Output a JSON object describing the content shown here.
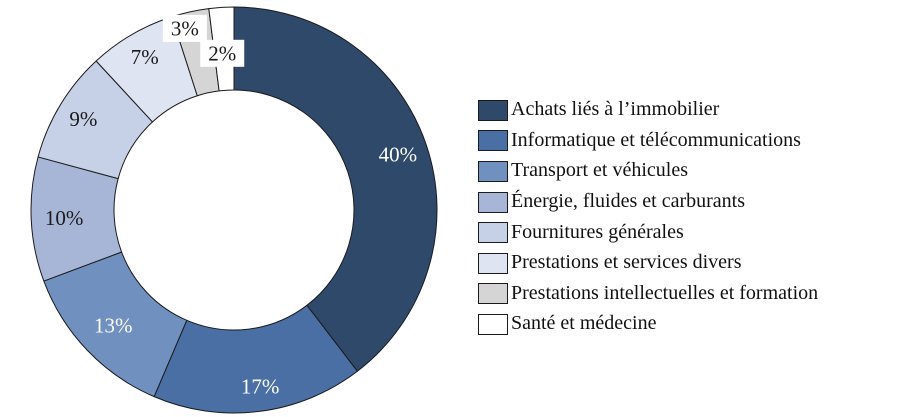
{
  "figure": {
    "background": "#FFFFFF"
  },
  "chart_data": {
    "type": "donut",
    "title": "",
    "unit": "%",
    "direction": "clockwise",
    "start_angle_deg": 0,
    "inner_radius_ratio": 0.59,
    "stroke_color": "#1B1B1B",
    "label_box_color": "#FFFFFF",
    "legend_position": "right",
    "slices": [
      {
        "label": "Achats liés à l’immobilier",
        "value": 40,
        "value_label": "40%",
        "color": "#2F496B",
        "text_color": "#FFFFFF"
      },
      {
        "label": "Informatique et télécommunications",
        "value": 17,
        "value_label": "17%",
        "color": "#4A6FA5",
        "text_color": "#FFFFFF"
      },
      {
        "label": "Transport et véhicules",
        "value": 13,
        "value_label": "13%",
        "color": "#7090C0",
        "text_color": "#FFFFFF"
      },
      {
        "label": "Énergie, fluides et carburants",
        "value": 10,
        "value_label": "10%",
        "color": "#A7B6D7",
        "text_color": "#1A1A1A"
      },
      {
        "label": "Fournitures générales",
        "value": 9,
        "value_label": "9%",
        "color": "#C6D0E6",
        "text_color": "#1A1A1A"
      },
      {
        "label": "Prestations et services divers",
        "value": 7,
        "value_label": "7%",
        "color": "#DEE4F1",
        "text_color": "#1A1A1A"
      },
      {
        "label": "Prestations intellectuelles et formation",
        "value": 3,
        "value_label": "3%",
        "color": "#D5D5D5",
        "text_color": "#1A1A1A",
        "label_background": "#FFFFFF"
      },
      {
        "label": "Santé et médecine",
        "value": 2,
        "value_label": "2%",
        "color": "#FFFFFF",
        "text_color": "#1A1A1A",
        "label_background": "#FFFFFF"
      }
    ]
  }
}
